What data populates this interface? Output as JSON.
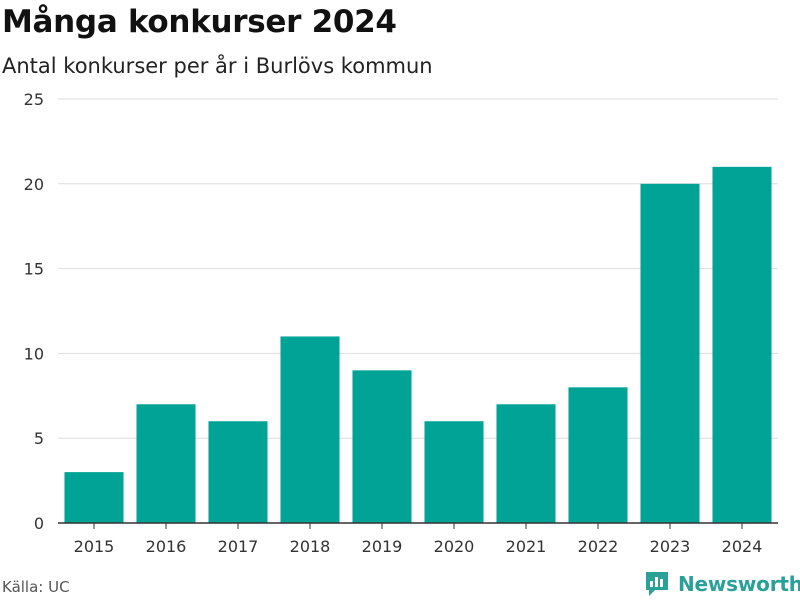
{
  "header": {
    "title": "Många konkurser 2024",
    "subtitle": "Antal konkurser per år i Burlövs kommun"
  },
  "footer": {
    "source": "Källa: UC",
    "brand": "Newsworthy",
    "brand_icon": "newsworthy-logo-icon"
  },
  "colors": {
    "bar": "#00a396",
    "grid": "#dddddd",
    "axis": "#333333",
    "brand": "#2aa198"
  },
  "chart_data": {
    "type": "bar",
    "title": "Många konkurser 2024",
    "subtitle": "Antal konkurser per år i Burlövs kommun",
    "xlabel": "",
    "ylabel": "",
    "categories": [
      "2015",
      "2016",
      "2017",
      "2018",
      "2019",
      "2020",
      "2021",
      "2022",
      "2023",
      "2024"
    ],
    "values": [
      3,
      7,
      6,
      11,
      9,
      6,
      7,
      8,
      20,
      21
    ],
    "ylim": [
      0,
      25
    ],
    "yticks": [
      0,
      5,
      10,
      15,
      20,
      25
    ],
    "grid": true,
    "legend": "none"
  }
}
